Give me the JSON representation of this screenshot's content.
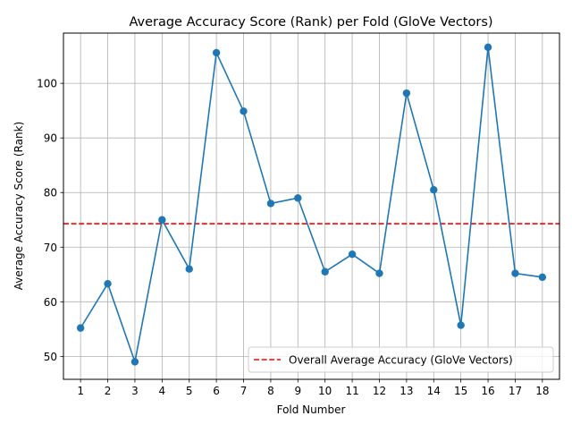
{
  "chart_data": {
    "type": "line",
    "title": "Average Accuracy Score (Rank) per Fold (GloVe Vectors)",
    "xlabel": "Fold Number",
    "ylabel": "Average Accuracy Score (Rank)",
    "x": [
      1,
      2,
      3,
      4,
      5,
      6,
      7,
      8,
      9,
      10,
      11,
      12,
      13,
      14,
      15,
      16,
      17,
      18
    ],
    "series": [
      {
        "values": [
          55.2,
          63.3,
          49.0,
          75.0,
          66.0,
          105.6,
          94.9,
          78.0,
          79.0,
          65.5,
          68.7,
          65.2,
          98.2,
          80.5,
          55.7,
          106.6,
          65.2,
          64.5
        ],
        "color": "#1f77b4"
      }
    ],
    "reference_line": {
      "name": "Overall Average Accuracy (GloVe Vectors)",
      "value": 74.3,
      "color": "#ff0000",
      "style": "dashed"
    },
    "xlim": [
      0.37,
      18.63
    ],
    "ylim": [
      45.8,
      109.2
    ],
    "yticks": [
      50,
      60,
      70,
      80,
      90,
      100
    ],
    "grid": true,
    "legend_position": "lower right"
  }
}
